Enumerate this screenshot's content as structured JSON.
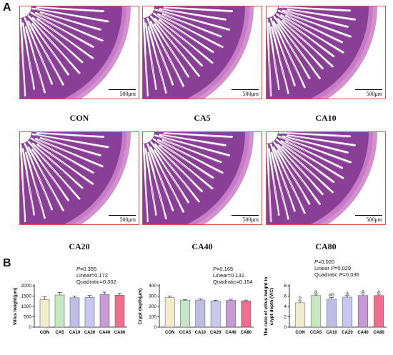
{
  "panel_a": {
    "letter": "A",
    "scale_label": "500μm",
    "images": [
      {
        "label": "CON"
      },
      {
        "label": "CA5"
      },
      {
        "label": "CA10"
      },
      {
        "label": "CA20"
      },
      {
        "label": "CA40"
      },
      {
        "label": "CA80"
      }
    ]
  },
  "panel_b": {
    "letter": "B",
    "stats": [
      {
        "p": "=0.355",
        "linear": "Linear=0.172",
        "quadratic": "Quadratic=0.302"
      },
      {
        "p": "=0.165",
        "linear": "Linear=0.131",
        "quadratic": "Quadratic=0.154"
      },
      {
        "p": "=0.020",
        "linear": "Linear ",
        "linear_p": "=0.029",
        "quadratic": "Quadratic ",
        "quadratic_p": "=0.036"
      }
    ],
    "p_letter": "P"
  },
  "chart_data": [
    {
      "type": "bar",
      "categories": [
        "CON",
        "CA5",
        "CA10",
        "CA20",
        "CA40",
        "CA80"
      ],
      "values": [
        1330,
        1550,
        1420,
        1440,
        1580,
        1540
      ],
      "errors": [
        130,
        120,
        80,
        90,
        110,
        90
      ],
      "ylabel": "Villus height(μm)",
      "ylim": [
        0,
        2000
      ],
      "yticks": [
        0,
        500,
        1000,
        1500,
        2000
      ],
      "colors": [
        "#f2eccb",
        "#c4e9c2",
        "#bdbde6",
        "#c7c7ef",
        "#c79ad6",
        "#ef6d8f"
      ]
    },
    {
      "type": "bar",
      "categories": [
        "CON",
        "CCA5",
        "CA10",
        "CA20",
        "CA40",
        "CA80"
      ],
      "values": [
        285,
        258,
        262,
        252,
        258,
        253
      ],
      "errors": [
        15,
        8,
        10,
        7,
        11,
        8
      ],
      "ylabel": "Crypt depth(μm)",
      "ylim": [
        0,
        400
      ],
      "yticks": [
        0,
        100,
        200,
        300,
        400
      ],
      "colors": [
        "#f2eccb",
        "#c4e9c2",
        "#bdbde6",
        "#c7c7ef",
        "#c79ad6",
        "#ef6d8f"
      ]
    },
    {
      "type": "bar",
      "categories": [
        "CON",
        "CCA5",
        "CA10",
        "CA20",
        "CA40",
        "CA80"
      ],
      "values": [
        4.7,
        6.1,
        5.4,
        5.8,
        6.1,
        6.1
      ],
      "errors": [
        0.4,
        0.25,
        0.3,
        0.3,
        0.3,
        0.25
      ],
      "letters": [
        "b",
        "a",
        "ab",
        "a",
        "a",
        "a"
      ],
      "ylabel": "The ratio of villus height to crypt depth (V/C)",
      "ylabel_lines": [
        "The ratio of villus height to",
        "crypt depth (V/C)"
      ],
      "ylim": [
        0,
        8
      ],
      "yticks": [
        0,
        2,
        4,
        6,
        8
      ],
      "colors": [
        "#f2eccb",
        "#c4e9c2",
        "#bdbde6",
        "#c7c7ef",
        "#c79ad6",
        "#ef6d8f"
      ]
    }
  ]
}
